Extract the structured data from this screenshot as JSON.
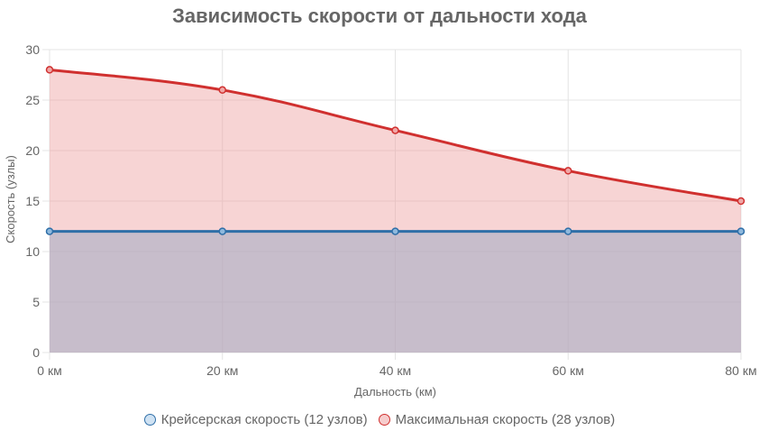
{
  "chart_data": {
    "type": "line",
    "title": "Зависимость скорости от дальности хода",
    "xlabel": "Дальность (км)",
    "ylabel": "Скорость (узлы)",
    "categories": [
      "0 км",
      "20 км",
      "40 км",
      "60 км",
      "80 км"
    ],
    "x": [
      0,
      20,
      40,
      60,
      80
    ],
    "ylim": [
      0,
      30
    ],
    "yticks": [
      "0",
      "5",
      "10",
      "15",
      "20",
      "25",
      "30"
    ],
    "grid": true,
    "legend_position": "bottom",
    "series": [
      {
        "name": "Крейсерская скорость (12 узлов)",
        "values": [
          12,
          12,
          12,
          12,
          12
        ],
        "color": "#2f6fa8",
        "fill": "rgba(54,162,235,0.2)",
        "filled": true
      },
      {
        "name": "Максимальная скорость (28 узлов)",
        "values": [
          28,
          26,
          22,
          18,
          15
        ],
        "color": "#d0302f",
        "fill": "rgba(230,120,120,0.32)",
        "filled": true
      }
    ]
  },
  "legend": {
    "items": [
      {
        "label": "Крейсерская скорость (12 узлов)",
        "border": "#2f6fa8",
        "bg": "#cfe2f3"
      },
      {
        "label": "Максимальная скорость (28 узлов)",
        "border": "#d0302f",
        "bg": "#f6cccc"
      }
    ]
  }
}
